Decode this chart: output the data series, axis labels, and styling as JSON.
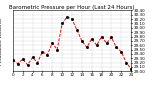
{
  "title": "Barometric Pressure per Hour (Last 24 Hours)",
  "y_axis_label": "Milwaukee Weather",
  "ylim": [
    29.0,
    30.4
  ],
  "xlim": [
    0,
    24
  ],
  "hours": [
    0,
    1,
    2,
    3,
    4,
    5,
    6,
    7,
    8,
    9,
    10,
    11,
    12,
    13,
    14,
    15,
    16,
    17,
    18,
    19,
    20,
    21,
    22,
    23,
    24
  ],
  "pressure": [
    29.25,
    29.18,
    29.28,
    29.15,
    29.32,
    29.2,
    29.45,
    29.38,
    29.65,
    29.5,
    30.1,
    30.25,
    30.2,
    29.95,
    29.7,
    29.55,
    29.75,
    29.6,
    29.8,
    29.65,
    29.78,
    29.55,
    29.45,
    29.2,
    29.05
  ],
  "ytick_values": [
    29.0,
    29.1,
    29.2,
    29.3,
    29.4,
    29.5,
    29.6,
    29.7,
    29.8,
    29.9,
    30.0,
    30.1,
    30.2,
    30.3,
    30.4
  ],
  "xtick_values": [
    0,
    2,
    4,
    6,
    8,
    10,
    12,
    14,
    16,
    18,
    20,
    22,
    24
  ],
  "line_color": "#ff0000",
  "marker_color": "#000000",
  "bg_color": "#ffffff",
  "grid_color": "#aaaaaa",
  "title_fontsize": 4,
  "tick_fontsize": 3,
  "label_fontsize": 3.5
}
